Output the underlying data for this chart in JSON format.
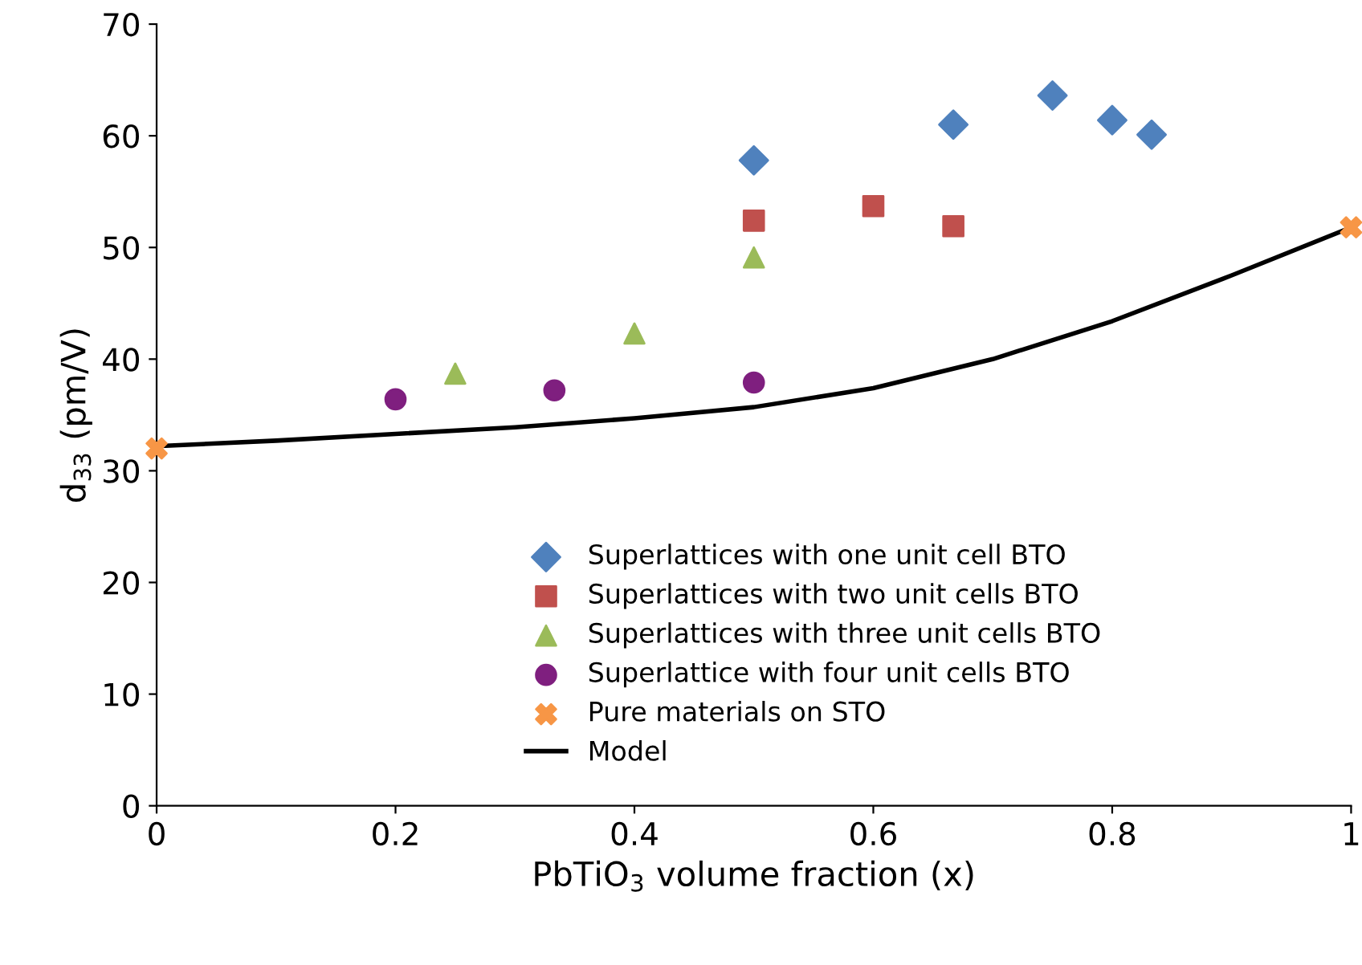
{
  "chart_data": {
    "type": "scatter",
    "xlabel": "PbTiO$_{3}$ volume fraction (x)",
    "ylabel": "d$_{33}$ (pm/V)",
    "xlim": [
      0,
      1
    ],
    "ylim": [
      0,
      70
    ],
    "xticks": [
      0,
      0.2,
      0.4,
      0.6,
      0.8,
      1
    ],
    "yticks": [
      0,
      10,
      20,
      30,
      40,
      50,
      60,
      70
    ],
    "grid": false,
    "legend": "bottom",
    "series": [
      {
        "name": "Superlattices with one unit cell BTO",
        "color": "#4f81bd",
        "marker": "diamond",
        "x": [
          0.5,
          0.667,
          0.75,
          0.8,
          0.833
        ],
        "values": [
          57.8,
          61.0,
          63.6,
          61.4,
          60.1
        ]
      },
      {
        "name": "Superlattices with two unit cells BTO",
        "color": "#c0504d",
        "marker": "square",
        "x": [
          0.5,
          0.6,
          0.667
        ],
        "values": [
          52.4,
          53.7,
          51.9
        ]
      },
      {
        "name": "Superlattices with three unit cells BTO",
        "color": "#9bbb59",
        "marker": "triangle",
        "x": [
          0.25,
          0.4,
          0.5
        ],
        "values": [
          38.7,
          42.3,
          49.1
        ]
      },
      {
        "name": "Superlattice with four unit cells BTO",
        "color": "#7f1f7f",
        "marker": "circle",
        "x": [
          0.2,
          0.333,
          0.5
        ],
        "values": [
          36.4,
          37.2,
          37.9
        ]
      },
      {
        "name": "Pure materials on STO",
        "color": "#f79646",
        "marker": "cross",
        "x": [
          0,
          1
        ],
        "values": [
          32.0,
          51.8
        ]
      },
      {
        "name": "Model",
        "color": "#000000",
        "type": "line",
        "marker": "none",
        "line_style": "solid",
        "x": [
          0,
          0.1,
          0.2,
          0.3,
          0.4,
          0.5,
          0.6,
          0.7,
          0.8,
          0.9,
          1
        ],
        "values": [
          32.2,
          32.7,
          33.3,
          33.9,
          34.7,
          35.7,
          37.4,
          40.0,
          43.4,
          47.5,
          51.8
        ]
      }
    ]
  }
}
